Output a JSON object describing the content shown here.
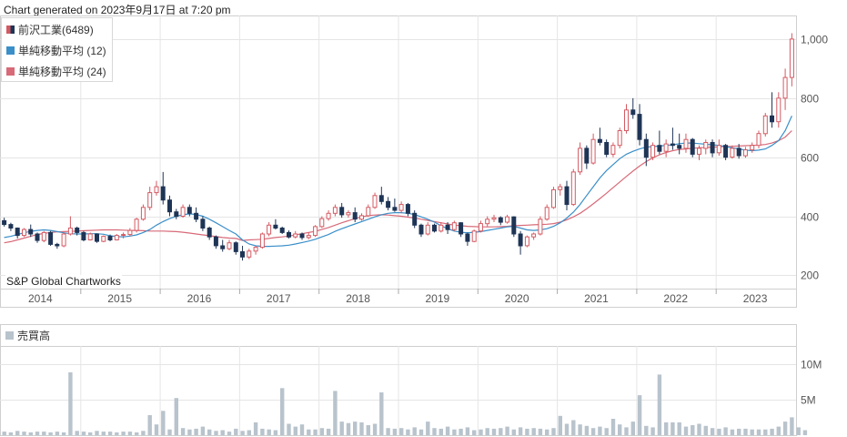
{
  "header": {
    "generated_text": "Chart generated on 2023年9月17日 at 7:20 pm"
  },
  "legend": {
    "items": [
      {
        "label": "前沢工業(6489)",
        "color": "#d45a62",
        "kind": "candle"
      },
      {
        "label": "単純移動平均 (12)",
        "color": "#3a8fc9",
        "kind": "line"
      },
      {
        "label": "単純移動平均 (24)",
        "color": "#d86a78",
        "kind": "line"
      }
    ]
  },
  "credit": "S&P Global Chartworks",
  "volume_legend": {
    "label": "売買高",
    "color": "#b8c3cc"
  },
  "colors": {
    "up": "#d45a62",
    "down": "#1f3556",
    "ma12": "#3a8fc9",
    "ma24": "#d86a78",
    "volume": "#b8c3cc",
    "grid": "#e5e5e5"
  },
  "chart_data": [
    {
      "type": "candlestick",
      "title": "前沢工業(6489)",
      "x_labels": [
        "2014",
        "2015",
        "2016",
        "2017",
        "2018",
        "2019",
        "2020",
        "2021",
        "2022",
        "2023"
      ],
      "y_ticks": [
        "200",
        "400",
        "600",
        "800",
        "1,000"
      ],
      "ylim": [
        155,
        1080
      ],
      "grid": true,
      "legend_position": "top-left",
      "ohlc": [
        [
          385,
          395,
          365,
          372
        ],
        [
          372,
          378,
          350,
          360
        ],
        [
          360,
          362,
          325,
          335
        ],
        [
          335,
          360,
          330,
          355
        ],
        [
          355,
          372,
          330,
          340
        ],
        [
          340,
          345,
          310,
          318
        ],
        [
          318,
          350,
          312,
          345
        ],
        [
          345,
          350,
          300,
          305
        ],
        [
          305,
          310,
          290,
          300
        ],
        [
          300,
          345,
          295,
          340
        ],
        [
          340,
          400,
          335,
          360
        ],
        [
          360,
          365,
          335,
          345
        ],
        [
          345,
          350,
          315,
          320
        ],
        [
          320,
          345,
          318,
          340
        ],
        [
          340,
          342,
          310,
          315
        ],
        [
          315,
          335,
          312,
          332
        ],
        [
          332,
          338,
          315,
          320
        ],
        [
          320,
          340,
          318,
          335
        ],
        [
          335,
          345,
          325,
          338
        ],
        [
          338,
          360,
          332,
          352
        ],
        [
          352,
          395,
          345,
          390
        ],
        [
          390,
          440,
          385,
          430
        ],
        [
          430,
          500,
          420,
          480
        ],
        [
          480,
          520,
          470,
          500
        ],
        [
          500,
          550,
          440,
          455
        ],
        [
          455,
          470,
          400,
          415
        ],
        [
          415,
          425,
          390,
          400
        ],
        [
          400,
          440,
          395,
          430
        ],
        [
          430,
          440,
          400,
          410
        ],
        [
          410,
          430,
          380,
          390
        ],
        [
          390,
          400,
          350,
          360
        ],
        [
          360,
          365,
          320,
          330
        ],
        [
          330,
          335,
          290,
          300
        ],
        [
          300,
          320,
          280,
          290
        ],
        [
          290,
          320,
          285,
          310
        ],
        [
          310,
          315,
          270,
          280
        ],
        [
          280,
          300,
          250,
          262
        ],
        [
          262,
          290,
          255,
          282
        ],
        [
          282,
          300,
          270,
          295
        ],
        [
          295,
          345,
          290,
          340
        ],
        [
          340,
          380,
          332,
          370
        ],
        [
          370,
          390,
          355,
          360
        ],
        [
          360,
          365,
          340,
          345
        ],
        [
          345,
          352,
          325,
          330
        ],
        [
          330,
          350,
          325,
          340
        ],
        [
          340,
          345,
          320,
          328
        ],
        [
          328,
          345,
          322,
          335
        ],
        [
          335,
          370,
          330,
          365
        ],
        [
          365,
          400,
          360,
          392
        ],
        [
          392,
          420,
          385,
          410
        ],
        [
          410,
          440,
          400,
          430
        ],
        [
          430,
          445,
          395,
          405
        ],
        [
          405,
          420,
          395,
          412
        ],
        [
          412,
          430,
          380,
          390
        ],
        [
          390,
          410,
          385,
          402
        ],
        [
          402,
          440,
          398,
          430
        ],
        [
          430,
          480,
          425,
          470
        ],
        [
          470,
          500,
          440,
          450
        ],
        [
          450,
          465,
          420,
          430
        ],
        [
          430,
          460,
          415,
          420
        ],
        [
          420,
          450,
          410,
          440
        ],
        [
          440,
          445,
          400,
          410
        ],
        [
          410,
          420,
          360,
          370
        ],
        [
          370,
          375,
          330,
          340
        ],
        [
          340,
          380,
          335,
          370
        ],
        [
          370,
          375,
          345,
          350
        ],
        [
          350,
          380,
          345,
          370
        ],
        [
          370,
          380,
          340,
          355
        ],
        [
          355,
          385,
          350,
          378
        ],
        [
          378,
          380,
          330,
          340
        ],
        [
          340,
          345,
          300,
          315
        ],
        [
          315,
          355,
          312,
          350
        ],
        [
          350,
          385,
          345,
          375
        ],
        [
          375,
          400,
          365,
          390
        ],
        [
          390,
          405,
          380,
          395
        ],
        [
          395,
          400,
          370,
          380
        ],
        [
          380,
          405,
          375,
          398
        ],
        [
          398,
          400,
          330,
          340
        ],
        [
          340,
          350,
          270,
          300
        ],
        [
          300,
          335,
          295,
          330
        ],
        [
          330,
          345,
          320,
          340
        ],
        [
          340,
          400,
          335,
          390
        ],
        [
          390,
          440,
          385,
          430
        ],
        [
          430,
          500,
          425,
          490
        ],
        [
          490,
          510,
          470,
          500
        ],
        [
          500,
          520,
          420,
          440
        ],
        [
          440,
          560,
          435,
          550
        ],
        [
          550,
          650,
          540,
          630
        ],
        [
          630,
          640,
          560,
          580
        ],
        [
          580,
          680,
          575,
          660
        ],
        [
          660,
          700,
          640,
          650
        ],
        [
          650,
          660,
          600,
          610
        ],
        [
          610,
          650,
          600,
          640
        ],
        [
          640,
          700,
          630,
          690
        ],
        [
          690,
          780,
          680,
          760
        ],
        [
          760,
          800,
          730,
          745
        ],
        [
          745,
          780,
          640,
          660
        ],
        [
          660,
          680,
          570,
          600
        ],
        [
          600,
          650,
          590,
          640
        ],
        [
          640,
          690,
          610,
          620
        ],
        [
          620,
          660,
          600,
          645
        ],
        [
          645,
          700,
          625,
          640
        ],
        [
          640,
          680,
          610,
          630
        ],
        [
          630,
          680,
          615,
          660
        ],
        [
          660,
          665,
          600,
          610
        ],
        [
          610,
          640,
          590,
          630
        ],
        [
          630,
          660,
          610,
          650
        ],
        [
          650,
          660,
          600,
          615
        ],
        [
          615,
          660,
          605,
          640
        ],
        [
          640,
          645,
          590,
          600
        ],
        [
          600,
          640,
          595,
          630
        ],
        [
          630,
          645,
          595,
          605
        ],
        [
          605,
          635,
          598,
          625
        ],
        [
          625,
          650,
          615,
          640
        ],
        [
          640,
          690,
          630,
          680
        ],
        [
          680,
          750,
          670,
          740
        ],
        [
          740,
          820,
          700,
          720
        ],
        [
          720,
          820,
          700,
          800
        ],
        [
          800,
          900,
          760,
          870
        ],
        [
          870,
          1020,
          840,
          1000
        ]
      ],
      "ma12": [
        328,
        332,
        338,
        344,
        349,
        352,
        354,
        352,
        348,
        344,
        341,
        340,
        340,
        341,
        341,
        339,
        334,
        331,
        330,
        333,
        337,
        345,
        355,
        370,
        382,
        392,
        400,
        405,
        408,
        406,
        400,
        390,
        378,
        365,
        352,
        340,
        320,
        306,
        300,
        298,
        298,
        299,
        300,
        302,
        306,
        311,
        316,
        322,
        330,
        338,
        349,
        358,
        366,
        374,
        382,
        390,
        398,
        405,
        410,
        412,
        412,
        410,
        406,
        398,
        390,
        380,
        368,
        358,
        350,
        346,
        344,
        346,
        348,
        352,
        356,
        360,
        364,
        366,
        360,
        354,
        352,
        354,
        358,
        366,
        378,
        394,
        414,
        440,
        470,
        500,
        530,
        555,
        575,
        595,
        610,
        620,
        628,
        634,
        636,
        638,
        640,
        642,
        646,
        648,
        648,
        646,
        644,
        642,
        640,
        636,
        632,
        628,
        624,
        622,
        624,
        628,
        640,
        656,
        690,
        740
      ],
      "ma24": [
        310,
        314,
        320,
        326,
        332,
        338,
        342,
        345,
        347,
        348,
        349,
        350,
        351,
        352,
        353,
        354,
        354,
        354,
        353,
        352,
        352,
        351,
        350,
        350,
        350,
        349,
        348,
        346,
        343,
        340,
        337,
        334,
        331,
        328,
        326,
        325,
        318,
        320,
        321,
        322,
        325,
        328,
        330,
        333,
        337,
        341,
        345,
        349,
        355,
        362,
        370,
        378,
        385,
        392,
        398,
        402,
        404,
        405,
        404,
        402,
        400,
        397,
        394,
        390,
        386,
        382,
        378,
        374,
        370,
        368,
        366,
        365,
        364,
        364,
        364,
        365,
        366,
        368,
        369,
        370,
        371,
        372,
        373,
        375,
        380,
        388,
        398,
        410,
        425,
        442,
        460,
        478,
        497,
        516,
        535,
        553,
        570,
        585,
        598,
        608,
        616,
        622,
        626,
        628,
        630,
        632,
        633,
        634,
        635,
        636,
        637,
        638,
        639,
        640,
        641,
        643,
        648,
        656,
        668,
        690
      ]
    },
    {
      "type": "bar",
      "title": "売買高",
      "y_ticks": [
        "5M",
        "10M"
      ],
      "ylim": [
        0,
        12.5
      ],
      "volume_millions": [
        0.5,
        0.4,
        0.6,
        0.5,
        0.4,
        0.5,
        0.5,
        0.4,
        0.5,
        0.4,
        8.8,
        0.6,
        0.5,
        0.4,
        0.6,
        0.5,
        0.5,
        0.4,
        0.5,
        0.5,
        0.4,
        0.6,
        2.8,
        1.5,
        3.4,
        0.8,
        5.2,
        1.0,
        0.8,
        0.9,
        1.2,
        0.8,
        0.6,
        0.7,
        0.5,
        0.9,
        0.6,
        0.7,
        1.8,
        0.9,
        0.8,
        0.7,
        6.6,
        1.6,
        1.2,
        1.5,
        0.8,
        0.8,
        1.0,
        0.9,
        6.2,
        1.9,
        1.7,
        1.9,
        1.8,
        1.4,
        1.6,
        6.0,
        1.0,
        0.9,
        1.0,
        0.8,
        1.1,
        0.8,
        1.9,
        1.0,
        0.9,
        1.2,
        0.8,
        0.9,
        1.1,
        0.7,
        0.8,
        1.0,
        0.9,
        1.0,
        1.2,
        0.8,
        1.1,
        0.9,
        1.0,
        0.9,
        0.8,
        1.0,
        2.7,
        1.6,
        2.1,
        1.5,
        1.3,
        1.0,
        1.2,
        1.0,
        2.3,
        1.5,
        1.1,
        1.9,
        5.6,
        1.3,
        1.1,
        8.5,
        1.8,
        1.8,
        1.8,
        1.2,
        1.4,
        1.6,
        1.3,
        1.0,
        0.9,
        1.1,
        0.8,
        0.9,
        0.9,
        0.8,
        0.8,
        0.8,
        0.9,
        1.2,
        1.9,
        2.5,
        1.1,
        0.7
      ]
    }
  ]
}
